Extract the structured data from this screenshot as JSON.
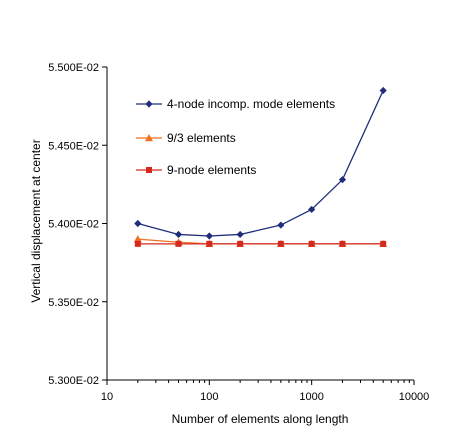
{
  "chart_data": {
    "type": "line",
    "title": "",
    "xlabel": "Number of elements along length",
    "ylabel": "Vertical displacement at center",
    "x_scale": "log",
    "xlim": [
      10,
      10000
    ],
    "ylim": [
      0.053,
      0.055
    ],
    "x_ticks": [
      10,
      100,
      1000,
      10000
    ],
    "x_tick_labels": [
      "10",
      "100",
      "1000",
      "10000"
    ],
    "y_ticks": [
      0.053,
      0.0535,
      0.054,
      0.0545,
      0.055
    ],
    "y_tick_labels": [
      "5.300E-02",
      "5.350E-02",
      "5.400E-02",
      "5.450E-02",
      "5.500E-02"
    ],
    "grid": false,
    "legend_position": "top-left inside plot",
    "series": [
      {
        "name": "4-node incomp. mode elements",
        "color": "#1f2d7a",
        "marker": "diamond",
        "x": [
          20,
          50,
          100,
          200,
          500,
          1000,
          2000,
          5000
        ],
        "y": [
          0.054,
          0.05393,
          0.05392,
          0.05393,
          0.05399,
          0.05409,
          0.05428,
          0.05485
        ]
      },
      {
        "name": "9/3 elements",
        "color": "#f07020",
        "marker": "triangle",
        "x": [
          20,
          50,
          100,
          200,
          500,
          1000,
          2000,
          5000
        ],
        "y": [
          0.0539,
          0.05388,
          0.05387,
          0.05387,
          0.05387,
          0.05387,
          0.05387,
          0.05387
        ]
      },
      {
        "name": "9-node elements",
        "color": "#d42a1e",
        "marker": "square",
        "x": [
          20,
          50,
          100,
          200,
          500,
          1000,
          2000,
          5000
        ],
        "y": [
          0.05387,
          0.05387,
          0.05387,
          0.05387,
          0.05387,
          0.05387,
          0.05387,
          0.05387
        ]
      }
    ]
  }
}
